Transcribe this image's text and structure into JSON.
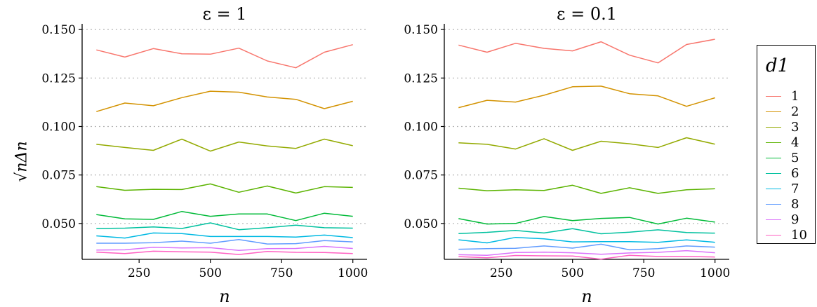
{
  "ylabel_text": "√nΔn",
  "legend": {
    "title": "d1",
    "entries": [
      {
        "label": "1",
        "color": "#F8766D"
      },
      {
        "label": "2",
        "color": "#D39200"
      },
      {
        "label": "3",
        "color": "#93AA00"
      },
      {
        "label": "4",
        "color": "#5BB300"
      },
      {
        "label": "5",
        "color": "#00BA38"
      },
      {
        "label": "6",
        "color": "#00C19F"
      },
      {
        "label": "7",
        "color": "#00B9E3"
      },
      {
        "label": "8",
        "color": "#619CFF"
      },
      {
        "label": "9",
        "color": "#DB72FB"
      },
      {
        "label": "10",
        "color": "#FF61C3"
      }
    ]
  },
  "chart_data": [
    {
      "type": "line",
      "title": "ε = 1",
      "xlabel": "n",
      "ylabel": "√nΔn",
      "x": [
        100,
        200,
        300,
        400,
        500,
        600,
        700,
        800,
        900,
        1000
      ],
      "x_ticks": [
        250,
        500,
        750,
        1000
      ],
      "y_ticks": [
        0.05,
        0.075,
        0.1,
        0.125,
        0.15
      ],
      "y_tick_labels": [
        "0.050",
        "0.075",
        "0.100",
        "0.125",
        "0.150"
      ],
      "xlim": [
        50,
        1050
      ],
      "ylim": [
        0.0315,
        0.1515
      ],
      "grid": "horizontal dotted",
      "series": [
        {
          "name": "1",
          "values": [
            0.1395,
            0.1358,
            0.1402,
            0.1375,
            0.1373,
            0.1404,
            0.1338,
            0.1303,
            0.1383,
            0.1422
          ]
        },
        {
          "name": "2",
          "values": [
            0.1077,
            0.1121,
            0.1107,
            0.1149,
            0.1182,
            0.1177,
            0.1152,
            0.114,
            0.1092,
            0.113
          ]
        },
        {
          "name": "3",
          "values": [
            0.0908,
            0.0892,
            0.0877,
            0.0935,
            0.0873,
            0.092,
            0.09,
            0.0887,
            0.0935,
            0.0901
          ]
        },
        {
          "name": "4",
          "values": [
            0.069,
            0.0671,
            0.0676,
            0.0675,
            0.0704,
            0.0661,
            0.0693,
            0.0657,
            0.069,
            0.0686
          ]
        },
        {
          "name": "5",
          "values": [
            0.0546,
            0.0524,
            0.0521,
            0.0562,
            0.0537,
            0.0549,
            0.0549,
            0.0515,
            0.0553,
            0.0537
          ]
        },
        {
          "name": "6",
          "values": [
            0.0474,
            0.0476,
            0.0482,
            0.0474,
            0.0503,
            0.0468,
            0.0478,
            0.0491,
            0.0478,
            0.0476
          ]
        },
        {
          "name": "7",
          "values": [
            0.0436,
            0.0425,
            0.0451,
            0.0448,
            0.0433,
            0.0433,
            0.0433,
            0.043,
            0.044,
            0.0427
          ]
        },
        {
          "name": "8",
          "values": [
            0.0398,
            0.0398,
            0.0401,
            0.0409,
            0.0398,
            0.0417,
            0.0394,
            0.0396,
            0.0412,
            0.0405
          ]
        },
        {
          "name": "9",
          "values": [
            0.0363,
            0.0364,
            0.0377,
            0.0374,
            0.0375,
            0.0361,
            0.037,
            0.0371,
            0.0382,
            0.0371
          ]
        },
        {
          "name": "10",
          "values": [
            0.0352,
            0.0345,
            0.0357,
            0.0354,
            0.0352,
            0.034,
            0.0356,
            0.0351,
            0.035,
            0.0345
          ]
        }
      ]
    },
    {
      "type": "line",
      "title": "ε = 0.1",
      "xlabel": "n",
      "ylabel": "",
      "x": [
        100,
        200,
        300,
        400,
        500,
        600,
        700,
        800,
        900,
        1000
      ],
      "x_ticks": [
        250,
        500,
        750,
        1000
      ],
      "y_ticks": [
        0.05,
        0.075,
        0.1,
        0.125,
        0.15
      ],
      "y_tick_labels": [
        "0.050",
        "0.075",
        "0.100",
        "0.125",
        "0.150"
      ],
      "xlim": [
        50,
        1050
      ],
      "ylim": [
        0.0315,
        0.1515
      ],
      "grid": "horizontal dotted",
      "series": [
        {
          "name": "1",
          "values": [
            0.142,
            0.1383,
            0.1429,
            0.1403,
            0.139,
            0.1437,
            0.1368,
            0.1328,
            0.1423,
            0.145
          ]
        },
        {
          "name": "2",
          "values": [
            0.1097,
            0.1135,
            0.1126,
            0.1161,
            0.1205,
            0.1208,
            0.1169,
            0.1158,
            0.1104,
            0.1148
          ]
        },
        {
          "name": "3",
          "values": [
            0.0916,
            0.0908,
            0.0884,
            0.0937,
            0.0877,
            0.0924,
            0.0911,
            0.0892,
            0.0942,
            0.0909
          ]
        },
        {
          "name": "4",
          "values": [
            0.0682,
            0.0669,
            0.0674,
            0.067,
            0.0697,
            0.0655,
            0.0684,
            0.0655,
            0.0674,
            0.0679
          ]
        },
        {
          "name": "5",
          "values": [
            0.0525,
            0.0497,
            0.05,
            0.0536,
            0.0515,
            0.0526,
            0.0531,
            0.0497,
            0.0527,
            0.0507
          ]
        },
        {
          "name": "6",
          "values": [
            0.0448,
            0.0454,
            0.0464,
            0.0451,
            0.0473,
            0.0447,
            0.0455,
            0.0467,
            0.0453,
            0.045
          ]
        },
        {
          "name": "7",
          "values": [
            0.0416,
            0.04,
            0.0428,
            0.0421,
            0.0405,
            0.0406,
            0.0406,
            0.0403,
            0.0415,
            0.0403
          ]
        },
        {
          "name": "8",
          "values": [
            0.0367,
            0.037,
            0.0372,
            0.0384,
            0.0373,
            0.0393,
            0.0364,
            0.037,
            0.0384,
            0.0378
          ]
        },
        {
          "name": "9",
          "values": [
            0.0339,
            0.0336,
            0.035,
            0.0352,
            0.0349,
            0.0341,
            0.0348,
            0.0351,
            0.036,
            0.0349
          ]
        },
        {
          "name": "10",
          "values": [
            0.0329,
            0.0323,
            0.0335,
            0.0333,
            0.0332,
            0.0316,
            0.0336,
            0.033,
            0.033,
            0.0327
          ]
        }
      ]
    }
  ]
}
